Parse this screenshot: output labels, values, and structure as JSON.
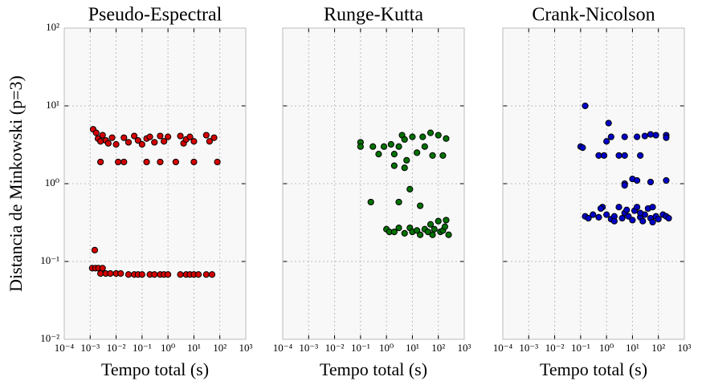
{
  "chart_data": [
    {
      "type": "scatter",
      "title": "Pseudo-Espectral",
      "xlabel": "Tempo total (s)",
      "ylabel": "Distancia de Minkowski (p=3)",
      "log_x": true,
      "log_y": true,
      "grid": true,
      "color": "#d40000",
      "xlim": [
        0.0001,
        1000
      ],
      "ylim": [
        0.01,
        100
      ],
      "xticks": [
        {
          "value": 0.0001,
          "label": "10⁻⁴"
        },
        {
          "value": 0.001,
          "label": "10⁻³"
        },
        {
          "value": 0.01,
          "label": "10⁻²"
        },
        {
          "value": 0.1,
          "label": "10⁻¹"
        },
        {
          "value": 1,
          "label": "10⁰"
        },
        {
          "value": 10,
          "label": "10¹"
        },
        {
          "value": 100,
          "label": "10²"
        },
        {
          "value": 1000,
          "label": "10³"
        }
      ],
      "yticks": [
        {
          "value": 0.01,
          "label": "10⁻²"
        },
        {
          "value": 0.1,
          "label": "10⁻¹"
        },
        {
          "value": 1,
          "label": "10⁰"
        },
        {
          "value": 10,
          "label": "10¹"
        },
        {
          "value": 100,
          "label": "10²"
        }
      ],
      "x": [
        0.0013,
        0.0017,
        0.002,
        0.0025,
        0.003,
        0.004,
        0.005,
        0.007,
        0.01,
        0.02,
        0.03,
        0.05,
        0.07,
        0.1,
        0.15,
        0.2,
        0.3,
        0.5,
        0.7,
        1,
        3,
        4,
        5,
        7,
        10,
        30,
        40,
        60,
        0.0025,
        0.012,
        0.02,
        0.15,
        0.5,
        2,
        10,
        80,
        0.0015,
        0.0012,
        0.0016,
        0.0021,
        0.003,
        0.0025,
        0.004,
        0.006,
        0.01,
        0.015,
        0.03,
        0.05,
        0.07,
        0.1,
        0.2,
        0.3,
        0.5,
        0.7,
        1,
        3,
        5,
        7,
        10,
        15,
        30,
        50
      ],
      "y": [
        5.0,
        4.5,
        3.8,
        3.5,
        4.2,
        3.6,
        3.3,
        3.9,
        3.2,
        3.9,
        3.4,
        4.1,
        3.6,
        3.2,
        3.8,
        4.0,
        3.4,
        4.1,
        3.5,
        4.0,
        4.1,
        3.3,
        3.7,
        4.0,
        3.5,
        4.2,
        3.5,
        3.9,
        1.9,
        1.9,
        1.9,
        1.9,
        1.9,
        1.9,
        1.9,
        1.9,
        0.14,
        0.082,
        0.082,
        0.082,
        0.082,
        0.07,
        0.07,
        0.07,
        0.07,
        0.07,
        0.068,
        0.068,
        0.068,
        0.068,
        0.068,
        0.068,
        0.068,
        0.068,
        0.068,
        0.068,
        0.068,
        0.068,
        0.068,
        0.068,
        0.068,
        0.068
      ]
    },
    {
      "type": "scatter",
      "title": "Runge-Kutta",
      "xlabel": "Tempo total (s)",
      "log_x": true,
      "log_y": true,
      "grid": true,
      "color": "#007000",
      "xlim": [
        0.0001,
        1000
      ],
      "ylim": [
        0.01,
        100
      ],
      "xticks": [
        {
          "value": 0.0001,
          "label": "10⁻⁴"
        },
        {
          "value": 0.001,
          "label": "10⁻³"
        },
        {
          "value": 0.01,
          "label": "10⁻²"
        },
        {
          "value": 0.1,
          "label": "10⁻¹"
        },
        {
          "value": 1,
          "label": "10⁰"
        },
        {
          "value": 10,
          "label": "10¹"
        },
        {
          "value": 100,
          "label": "10²"
        },
        {
          "value": 1000,
          "label": "10³"
        }
      ],
      "yticks": [
        0.01,
        0.1,
        1,
        10,
        100
      ],
      "x": [
        0.1,
        0.1,
        0.25,
        0.3,
        0.5,
        0.8,
        1.5,
        2,
        3,
        4,
        5,
        6,
        8,
        10,
        15,
        20,
        25,
        30,
        50,
        60,
        100,
        150,
        200,
        2,
        3,
        5,
        1,
        1.3,
        2,
        3,
        5,
        8,
        10,
        15,
        20,
        30,
        40,
        50,
        60,
        70,
        100,
        120,
        150,
        200,
        250,
        180
      ],
      "y": [
        3.4,
        3.0,
        0.58,
        3.0,
        2.4,
        3.0,
        3.2,
        2.4,
        3.0,
        4.2,
        3.7,
        2.0,
        0.85,
        4.0,
        2.5,
        0.52,
        4.0,
        3.0,
        4.5,
        2.3,
        4.2,
        2.3,
        3.8,
        1.7,
        0.58,
        1.6,
        0.26,
        0.24,
        0.24,
        0.27,
        0.23,
        0.27,
        0.24,
        0.25,
        0.22,
        0.26,
        0.24,
        0.3,
        0.22,
        0.26,
        0.33,
        0.24,
        0.25,
        0.34,
        0.22,
        0.28
      ]
    },
    {
      "type": "scatter",
      "title": "Crank-Nicolson",
      "xlabel": "Tempo total (s)",
      "log_x": true,
      "log_y": true,
      "grid": true,
      "color": "#0000c8",
      "xlim": [
        0.0001,
        1000
      ],
      "ylim": [
        0.01,
        100
      ],
      "xticks": [
        {
          "value": 0.0001,
          "label": "10⁻⁴"
        },
        {
          "value": 0.001,
          "label": "10⁻³"
        },
        {
          "value": 0.01,
          "label": "10⁻²"
        },
        {
          "value": 0.1,
          "label": "10⁻¹"
        },
        {
          "value": 1,
          "label": "10⁰"
        },
        {
          "value": 10,
          "label": "10¹"
        },
        {
          "value": 100,
          "label": "10²"
        },
        {
          "value": 1000,
          "label": "10³"
        }
      ],
      "yticks": [
        0.01,
        0.1,
        1,
        10,
        100
      ],
      "x": [
        0.15,
        0.1,
        0.12,
        1.2,
        1,
        1.5,
        0.5,
        0.8,
        3,
        5,
        5,
        15,
        20,
        30,
        50,
        80,
        200,
        200,
        10,
        15,
        5,
        5,
        50,
        200,
        0.15,
        0.2,
        0.3,
        0.5,
        0.7,
        1,
        1.5,
        2,
        3,
        4,
        5,
        7,
        10,
        12,
        15,
        20,
        25,
        30,
        40,
        50,
        60,
        80,
        100,
        150,
        200,
        250,
        0.6,
        2,
        6,
        20,
        60
      ],
      "y": [
        10,
        3.0,
        2.9,
        6,
        3.5,
        4.0,
        2.3,
        2.3,
        2.3,
        4.0,
        2.3,
        4.0,
        2.3,
        4.1,
        4.3,
        4.2,
        4.2,
        3.9,
        1.15,
        1.1,
        1.0,
        0.95,
        1.05,
        1.1,
        0.38,
        0.36,
        0.4,
        0.37,
        0.5,
        0.4,
        0.35,
        0.38,
        0.5,
        0.36,
        0.42,
        0.38,
        0.34,
        0.45,
        0.5,
        0.37,
        0.33,
        0.4,
        0.48,
        0.36,
        0.5,
        0.38,
        0.35,
        0.4,
        0.38,
        0.36,
        0.48,
        0.33,
        0.46,
        0.42,
        0.32
      ]
    }
  ]
}
